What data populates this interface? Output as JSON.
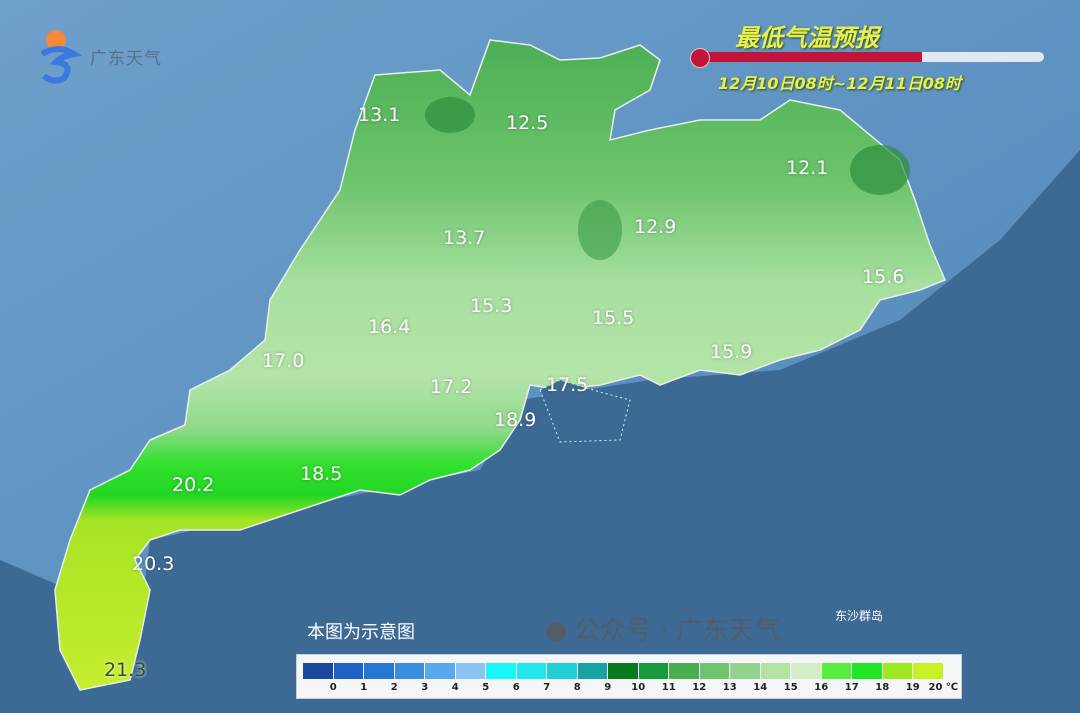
{
  "logo": {
    "text": "广东天气"
  },
  "header": {
    "title": "最低气温预报",
    "period": "12月10日08时~12月11日08时",
    "progress": 0.65
  },
  "temperature_labels": [
    {
      "value": "13.1"
    },
    {
      "value": "12.5"
    },
    {
      "value": "12.1"
    },
    {
      "value": "13.7"
    },
    {
      "value": "12.9"
    },
    {
      "value": "15.6"
    },
    {
      "value": "15.3"
    },
    {
      "value": "15.5"
    },
    {
      "value": "16.4"
    },
    {
      "value": "17.0"
    },
    {
      "value": "15.9"
    },
    {
      "value": "17.2"
    },
    {
      "value": "17.5"
    },
    {
      "value": "18.9"
    },
    {
      "value": "18.5"
    },
    {
      "value": "20.2"
    },
    {
      "value": "20.3"
    },
    {
      "value": "21.3"
    }
  ],
  "note": "本图为示意图",
  "island_label": "东沙群岛",
  "legend": {
    "unit": "℃",
    "ticks": [
      "0",
      "1",
      "2",
      "3",
      "4",
      "5",
      "6",
      "7",
      "8",
      "9",
      "10",
      "11",
      "12",
      "13",
      "14",
      "15",
      "16",
      "17",
      "18",
      "19",
      "20"
    ],
    "colors": [
      "#1a4a9e",
      "#1e62c4",
      "#2876d4",
      "#3a8ce0",
      "#58a8ee",
      "#88c4f4",
      "#18f6f8",
      "#22e6ee",
      "#20d0d6",
      "#14a4a6",
      "#0a7a1e",
      "#169a3a",
      "#48ae50",
      "#6ec46e",
      "#92d48e",
      "#b4e2a4",
      "#d2eec4",
      "#58ee40",
      "#22e622",
      "#9ee820",
      "#c8f024"
    ]
  },
  "watermark": {
    "text": "公众号 · 广东天气"
  },
  "colors": {
    "sea": "#3d6a94",
    "land_outside": "#5b8ec0",
    "title": "#eaf04a",
    "thermo": "#c0143a"
  }
}
